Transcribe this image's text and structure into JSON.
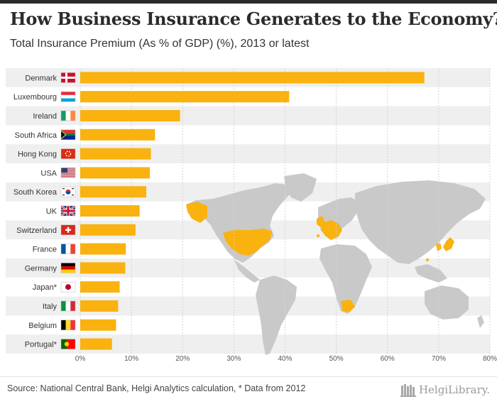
{
  "header": {
    "title": "How Business Insurance Generates to the Economy?",
    "subtitle": "Total Insurance Premium (As % of GDP) (%), 2013 or latest"
  },
  "footer": {
    "source": "Source: National Central Bank, Helgi Analytics calculation, * Data from 2012",
    "logo_text": "HelgiLibrary."
  },
  "colors": {
    "bar": "#f9b20f",
    "map_land": "#c9c9c9",
    "map_highlight": "#f9b20f",
    "row_band": "#efefef",
    "grid": "#d4d4d4",
    "text": "#333333"
  },
  "chart_data": {
    "type": "bar",
    "orientation": "horizontal",
    "title": "How Business Insurance Generates to the Economy?",
    "subtitle": "Total Insurance Premium (As % of GDP) (%), 2013 or latest",
    "categories": [
      "Denmark",
      "Luxembourg",
      "Ireland",
      "South Africa",
      "Hong Kong",
      "USA",
      "South Korea",
      "UK",
      "Switzerland",
      "France",
      "Germany",
      "Japan*",
      "Italy",
      "Belgium",
      "Portugal*"
    ],
    "flags": [
      "dk",
      "lu",
      "ie",
      "za",
      "hk",
      "us",
      "kr",
      "uk",
      "ch",
      "fr",
      "de",
      "jp",
      "it",
      "be",
      "pt"
    ],
    "values": [
      67.2,
      40.8,
      19.5,
      14.6,
      13.8,
      13.6,
      12.9,
      11.6,
      10.8,
      8.9,
      8.8,
      7.7,
      7.4,
      7.0,
      6.2
    ],
    "xlim": [
      0,
      80
    ],
    "xticks": [
      0,
      10,
      20,
      30,
      40,
      50,
      60,
      70,
      80
    ],
    "xtick_labels": [
      "0%",
      "10%",
      "20%",
      "30%",
      "40%",
      "50%",
      "60%",
      "70%",
      "80%"
    ],
    "xlabel": "",
    "ylabel": "",
    "grid": true
  }
}
